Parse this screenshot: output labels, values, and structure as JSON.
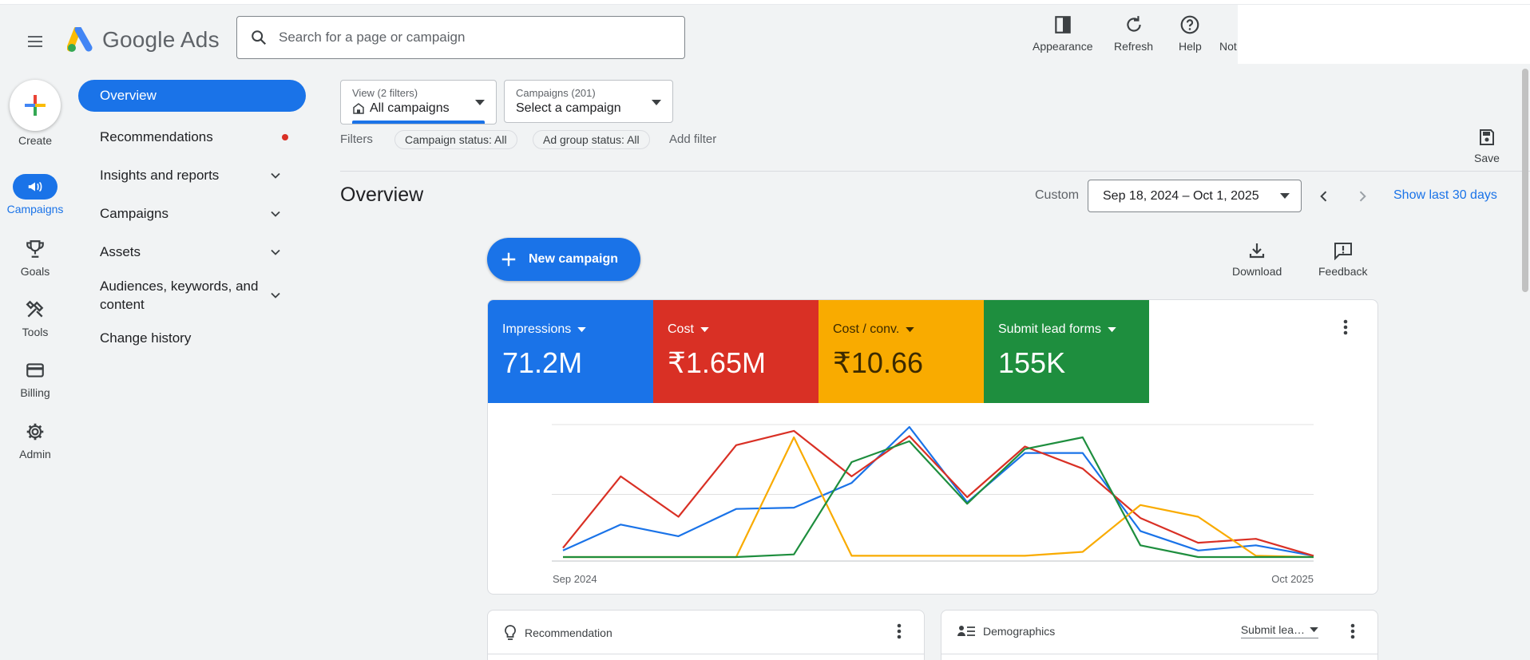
{
  "app": {
    "logo_text": "Google Ads"
  },
  "search": {
    "placeholder": "Search for a page or campaign"
  },
  "header_actions": [
    {
      "label": "Appearance",
      "icon": "appearance-icon"
    },
    {
      "label": "Refresh",
      "icon": "refresh-icon"
    },
    {
      "label": "Help",
      "icon": "help-icon"
    },
    {
      "label": "Not",
      "icon": "notifications-icon"
    }
  ],
  "rail": {
    "create": "Create",
    "items": [
      "Campaigns",
      "Goals",
      "Tools",
      "Billing",
      "Admin"
    ]
  },
  "nav": {
    "overview": "Overview",
    "recommendations": "Recommendations",
    "insights": "Insights and reports",
    "campaigns": "Campaigns",
    "assets": "Assets",
    "audiences_line1": "Audiences, keywords, and",
    "audiences_line2": "content",
    "change_history": "Change history"
  },
  "view_dd": {
    "small": "View (2 filters)",
    "big": "All campaigns"
  },
  "campaign_dd": {
    "small": "Campaigns (201)",
    "big": "Select a campaign"
  },
  "filters": {
    "label": "Filters",
    "chips": [
      "Campaign status: All",
      "Ad group status: All"
    ],
    "add": "Add filter"
  },
  "save_label": "Save",
  "overview": {
    "title": "Overview",
    "custom": "Custom",
    "date_range": "Sep 18, 2024 – Oct 1, 2025",
    "show_last": "Show last 30 days",
    "new_campaign": "New campaign",
    "download": "Download",
    "feedback": "Feedback"
  },
  "metrics": [
    {
      "label": "Impressions",
      "value": "71.2M",
      "color": "#1a73e8"
    },
    {
      "label": "Cost",
      "value": "₹1.65M",
      "color": "#d93025"
    },
    {
      "label": "Cost / conv.",
      "value": "₹10.66",
      "color": "#f9ab00"
    },
    {
      "label": "Submit lead forms",
      "value": "155K",
      "color": "#1e8e3e"
    }
  ],
  "chart_data": {
    "type": "line",
    "x_start_label": "Sep 2024",
    "x_end_label": "Oct 2025",
    "ylim": [
      0,
      100
    ],
    "grid": true,
    "series": [
      {
        "color": "#1a73e8",
        "values": [
          5,
          25,
          16,
          37,
          38,
          57,
          100,
          42,
          80,
          80,
          20,
          5,
          9,
          1
        ]
      },
      {
        "color": "#d93025",
        "values": [
          7,
          62,
          31,
          86,
          97,
          62,
          93,
          46,
          85,
          68,
          30,
          11,
          14,
          1
        ]
      },
      {
        "color": "#f9ab00",
        "values": [
          0,
          0,
          0,
          0,
          92,
          1,
          1,
          1,
          1,
          4,
          40,
          31,
          1,
          0
        ]
      },
      {
        "color": "#1e8e3e",
        "values": [
          0,
          0,
          0,
          0,
          2,
          73,
          89,
          41,
          83,
          92,
          9,
          0,
          0,
          0
        ]
      }
    ]
  },
  "bottom": {
    "recommendation": "Recommendation",
    "demographics": "Demographics",
    "demographics_select": "Submit lea…"
  }
}
